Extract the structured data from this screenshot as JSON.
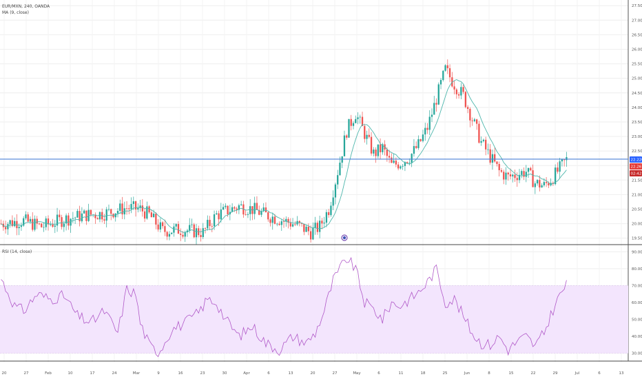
{
  "legend": {
    "symbol_line": "EUR/MXN, 240, OANDA",
    "ma_line": "MA (9, close)",
    "rsi_line": "RSI (14, close)"
  },
  "colors": {
    "up": "#26a69a",
    "down": "#ef5350",
    "ma": "#4db6ac",
    "rsi": "#b058c8",
    "rsi_band": "#f3e5fd",
    "hline": "#4a7fd6",
    "grid": "#eeeeee",
    "price_tag": "#2962ff",
    "tag_red": "#e53935",
    "tag_red_dark": "#c62828"
  },
  "price_tags": {
    "last": "22.220",
    "red1": "22.267",
    "red2": "02:42:08"
  },
  "chart_data": [
    {
      "type": "candlestick",
      "name": "price",
      "yticks": [
        "27.500",
        "27.000",
        "26.500",
        "26.000",
        "25.500",
        "25.000",
        "24.500",
        "24.000",
        "23.500",
        "23.000",
        "22.500",
        "22.000",
        "21.500",
        "21.000",
        "20.500",
        "20.000",
        "19.500"
      ],
      "yrange": [
        19.35,
        27.6
      ],
      "horizontal_line": 22.22,
      "anchors": [
        [
          0,
          20.0
        ],
        [
          10,
          20.1
        ],
        [
          18,
          19.9
        ],
        [
          28,
          20.15
        ],
        [
          38,
          20.3
        ],
        [
          46,
          20.35
        ],
        [
          56,
          20.55
        ],
        [
          62,
          20.5
        ],
        [
          66,
          20.3
        ],
        [
          72,
          19.75
        ],
        [
          80,
          19.8
        ],
        [
          90,
          19.7
        ],
        [
          96,
          20.3
        ],
        [
          106,
          20.6
        ],
        [
          112,
          20.5
        ],
        [
          118,
          20.3
        ],
        [
          126,
          20.1
        ],
        [
          132,
          19.95
        ],
        [
          138,
          19.7
        ],
        [
          142,
          19.9
        ],
        [
          146,
          20.5
        ],
        [
          150,
          21.8
        ],
        [
          154,
          23.2
        ],
        [
          158,
          23.8
        ],
        [
          162,
          23.1
        ],
        [
          166,
          22.4
        ],
        [
          170,
          22.6
        ],
        [
          174,
          22.0
        ],
        [
          178,
          22.1
        ],
        [
          182,
          22.3
        ],
        [
          186,
          22.7
        ],
        [
          190,
          23.3
        ],
        [
          194,
          24.3
        ],
        [
          198,
          25.3
        ],
        [
          202,
          24.8
        ],
        [
          206,
          24.4
        ],
        [
          210,
          23.6
        ],
        [
          214,
          22.8
        ],
        [
          218,
          22.3
        ],
        [
          222,
          21.8
        ],
        [
          226,
          21.6
        ],
        [
          230,
          21.7
        ],
        [
          234,
          21.8
        ],
        [
          238,
          21.4
        ],
        [
          242,
          21.3
        ],
        [
          246,
          21.6
        ],
        [
          250,
          22.0
        ],
        [
          252,
          22.2
        ]
      ]
    },
    {
      "type": "line",
      "name": "RSI",
      "yticks": [
        "90.00",
        "80.00",
        "70.00",
        "60.00",
        "50.00",
        "40.00",
        "30.00"
      ],
      "yrange": [
        27,
        93
      ],
      "band": [
        30,
        70
      ],
      "anchors": [
        [
          0,
          74
        ],
        [
          6,
          58
        ],
        [
          10,
          55
        ],
        [
          16,
          65
        ],
        [
          22,
          62
        ],
        [
          28,
          64
        ],
        [
          34,
          52
        ],
        [
          40,
          48
        ],
        [
          46,
          55
        ],
        [
          52,
          42
        ],
        [
          56,
          68
        ],
        [
          60,
          65
        ],
        [
          62,
          48
        ],
        [
          66,
          35
        ],
        [
          70,
          30
        ],
        [
          76,
          44
        ],
        [
          82,
          48
        ],
        [
          88,
          54
        ],
        [
          92,
          62
        ],
        [
          96,
          60
        ],
        [
          100,
          50
        ],
        [
          106,
          40
        ],
        [
          112,
          46
        ],
        [
          118,
          36
        ],
        [
          124,
          32
        ],
        [
          130,
          40
        ],
        [
          136,
          36
        ],
        [
          140,
          42
        ],
        [
          144,
          55
        ],
        [
          148,
          73
        ],
        [
          152,
          82
        ],
        [
          154,
          86
        ],
        [
          158,
          80
        ],
        [
          162,
          60
        ],
        [
          166,
          56
        ],
        [
          170,
          50
        ],
        [
          174,
          60
        ],
        [
          178,
          58
        ],
        [
          182,
          62
        ],
        [
          186,
          66
        ],
        [
          190,
          72
        ],
        [
          194,
          80
        ],
        [
          198,
          60
        ],
        [
          202,
          62
        ],
        [
          206,
          52
        ],
        [
          210,
          42
        ],
        [
          214,
          36
        ],
        [
          218,
          35
        ],
        [
          222,
          40
        ],
        [
          226,
          32
        ],
        [
          230,
          37
        ],
        [
          234,
          40
        ],
        [
          238,
          34
        ],
        [
          242,
          42
        ],
        [
          246,
          56
        ],
        [
          250,
          67
        ],
        [
          252,
          70
        ]
      ]
    }
  ],
  "xaxis": {
    "labels": [
      "20",
      "27",
      "Feb",
      "10",
      "17",
      "24",
      "Mar",
      "9",
      "16",
      "23",
      "30",
      "Apr",
      "6",
      "13",
      "20",
      "27",
      "May",
      "6",
      "11",
      "18",
      "25",
      "Jun",
      "8",
      "15",
      "22",
      "29",
      "Jul",
      "6",
      "13"
    ]
  }
}
